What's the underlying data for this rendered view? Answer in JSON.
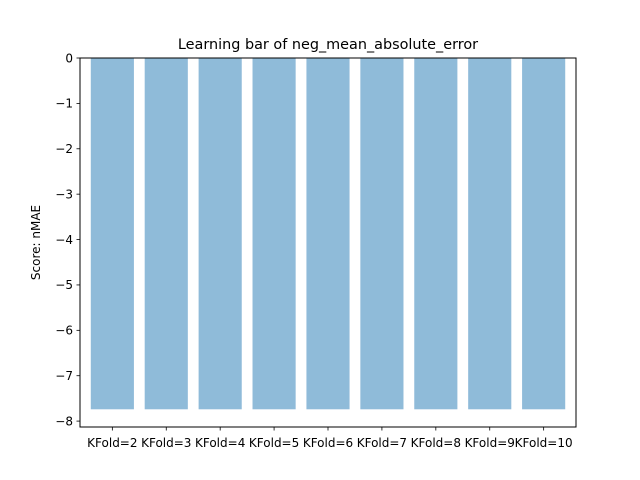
{
  "chart_data": {
    "type": "bar",
    "title": "Learning bar of neg_mean_absolute_error",
    "xlabel": "",
    "ylabel": "Score: nMAE",
    "categories": [
      "KFold=2",
      "KFold=3",
      "KFold=4",
      "KFold=5",
      "KFold=6",
      "KFold=7",
      "KFold=8",
      "KFold=9",
      "KFold=10"
    ],
    "values": [
      -7.74,
      -7.74,
      -7.74,
      -7.74,
      -7.74,
      -7.74,
      -7.74,
      -7.74,
      -7.74
    ],
    "ylim": [
      -8.13,
      0
    ],
    "yticks": [
      0,
      -1,
      -2,
      -3,
      -4,
      -5,
      -6,
      -7,
      -8
    ],
    "ytick_labels": [
      "0",
      "−1",
      "−2",
      "−3",
      "−4",
      "−5",
      "−6",
      "−7",
      "−8"
    ],
    "bar_color": "#8fbbd9",
    "grid": false,
    "legend": "none"
  }
}
